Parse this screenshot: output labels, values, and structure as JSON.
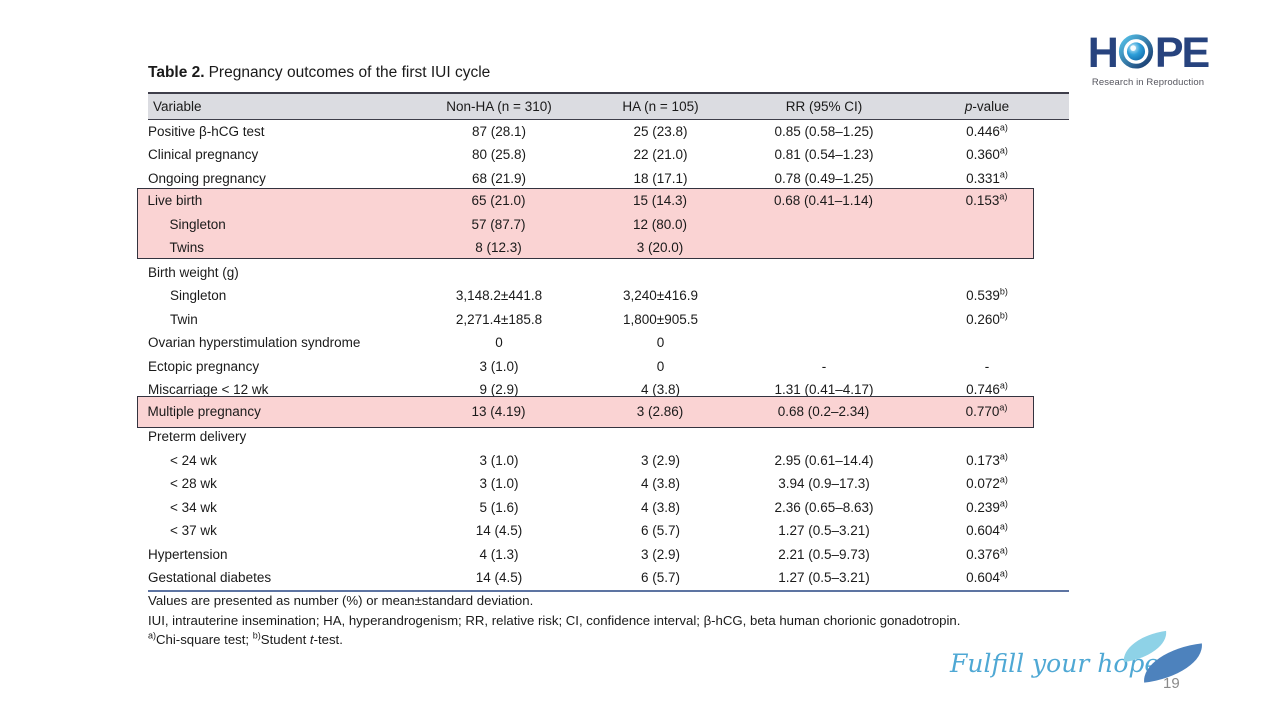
{
  "slide": {
    "title_label": "Table 2.",
    "title_text": "Pregnancy outcomes of the first IUI cycle",
    "tagline": "Fulfill your hope",
    "page_number": "19"
  },
  "logo": {
    "part1": "H",
    "part2": "PE",
    "eye_icon": "eye-sphere-icon",
    "subtitle": "Research in Reproduction"
  },
  "table": {
    "columns": [
      "Variable",
      "Non-HA (n = 310)",
      "HA (n = 105)",
      "RR (95% CI)"
    ],
    "p_header_italic": "p",
    "p_header_rest": "-value",
    "rows": [
      {
        "label": "Positive β-hCG test",
        "indent": false,
        "non_ha": "87 (28.1)",
        "ha": "25 (23.8)",
        "rr": "0.85 (0.58–1.25)",
        "p": "0.446^a)"
      },
      {
        "label": "Clinical pregnancy",
        "indent": false,
        "non_ha": "80 (25.8)",
        "ha": "22 (21.0)",
        "rr": "0.81 (0.54–1.23)",
        "p": "0.360^a)"
      },
      {
        "label": "Ongoing pregnancy",
        "indent": false,
        "non_ha": "68 (21.9)",
        "ha": "18 (17.1)",
        "rr": "0.78 (0.49–1.25)",
        "p": "0.331^a)"
      },
      {
        "label": "Live birth",
        "indent": false,
        "non_ha": "65 (21.0)",
        "ha": "15 (14.3)",
        "rr": "0.68 (0.41–1.14)",
        "p": "0.153^a)",
        "highlight": true
      },
      {
        "label": "Singleton",
        "indent": true,
        "non_ha": "57 (87.7)",
        "ha": "12 (80.0)",
        "rr": "",
        "p": "",
        "highlight": true
      },
      {
        "label": "Twins",
        "indent": true,
        "non_ha": "8 (12.3)",
        "ha": "3 (20.0)",
        "rr": "",
        "p": "",
        "highlight": true
      },
      {
        "label": "Birth weight (g)",
        "indent": false,
        "non_ha": "",
        "ha": "",
        "rr": "",
        "p": ""
      },
      {
        "label": "Singleton",
        "indent": true,
        "non_ha": "3,148.2±441.8",
        "ha": "3,240±416.9",
        "rr": "",
        "p": "0.539^b)"
      },
      {
        "label": "Twin",
        "indent": true,
        "non_ha": "2,271.4±185.8",
        "ha": "1,800±905.5",
        "rr": "",
        "p": "0.260^b)"
      },
      {
        "label": "Ovarian hyperstimulation syndrome",
        "indent": false,
        "non_ha": "0",
        "ha": "0",
        "rr": "",
        "p": ""
      },
      {
        "label": "Ectopic pregnancy",
        "indent": false,
        "non_ha": "3 (1.0)",
        "ha": "0",
        "rr": "-",
        "p": "-"
      },
      {
        "label": "Miscarriage < 12 wk",
        "indent": false,
        "non_ha": "9 (2.9)",
        "ha": "4 (3.8)",
        "rr": "1.31 (0.41–4.17)",
        "p": "0.746^a)"
      },
      {
        "label": "Multiple pregnancy",
        "indent": false,
        "non_ha": "13 (4.19)",
        "ha": "3 (2.86)",
        "rr": "0.68 (0.2–2.34)",
        "p": "0.770^a)",
        "highlight": true
      },
      {
        "label": "Preterm delivery",
        "indent": false,
        "non_ha": "",
        "ha": "",
        "rr": "",
        "p": ""
      },
      {
        "label": "< 24 wk",
        "indent": true,
        "non_ha": "3 (1.0)",
        "ha": "3 (2.9)",
        "rr": "2.95 (0.61–14.4)",
        "p": "0.173^a)"
      },
      {
        "label": "< 28 wk",
        "indent": true,
        "non_ha": "3 (1.0)",
        "ha": "4 (3.8)",
        "rr": "3.94 (0.9–17.3)",
        "p": "0.072^a)"
      },
      {
        "label": "< 34 wk",
        "indent": true,
        "non_ha": "5 (1.6)",
        "ha": "4 (3.8)",
        "rr": "2.36 (0.65–8.63)",
        "p": "0.239^a)"
      },
      {
        "label": "< 37 wk",
        "indent": true,
        "non_ha": "14 (4.5)",
        "ha": "6 (5.7)",
        "rr": "1.27 (0.5–3.21)",
        "p": "0.604^a)"
      },
      {
        "label": "Hypertension",
        "indent": false,
        "non_ha": "4 (1.3)",
        "ha": "3 (2.9)",
        "rr": "2.21 (0.5–9.73)",
        "p": "0.376^a)"
      },
      {
        "label": "Gestational diabetes",
        "indent": false,
        "non_ha": "14 (4.5)",
        "ha": "6 (5.7)",
        "rr": "1.27 (0.5–3.21)",
        "p": "0.604^a)"
      }
    ]
  },
  "footnotes": {
    "line1": "Values are presented as number (%) or mean±standard deviation.",
    "line2": "IUI, intrauterine insemination; HA, hyperandrogenism; RR, relative risk; CI, confidence interval; β-hCG, beta human chorionic gonadotropin.",
    "line3_sup_a": "a)",
    "line3_text_a": "Chi-square test; ",
    "line3_sup_b": "b)",
    "line3_text_b": "Student ",
    "line3_italic": "t",
    "line3_text_c": "-test."
  },
  "colors": {
    "header_bg": "#dbdce1",
    "rule_dark": "#3e3e4a",
    "rule_blue": "#5d74a2",
    "highlight_fill": "#fad3d3",
    "highlight_border": "#33333f",
    "navy": "#27437e",
    "tagline": "#4fa8d4",
    "leaf_light": "#8ed2e7",
    "leaf_dark": "#4d82bd",
    "page_number": "#8a8a8a"
  }
}
